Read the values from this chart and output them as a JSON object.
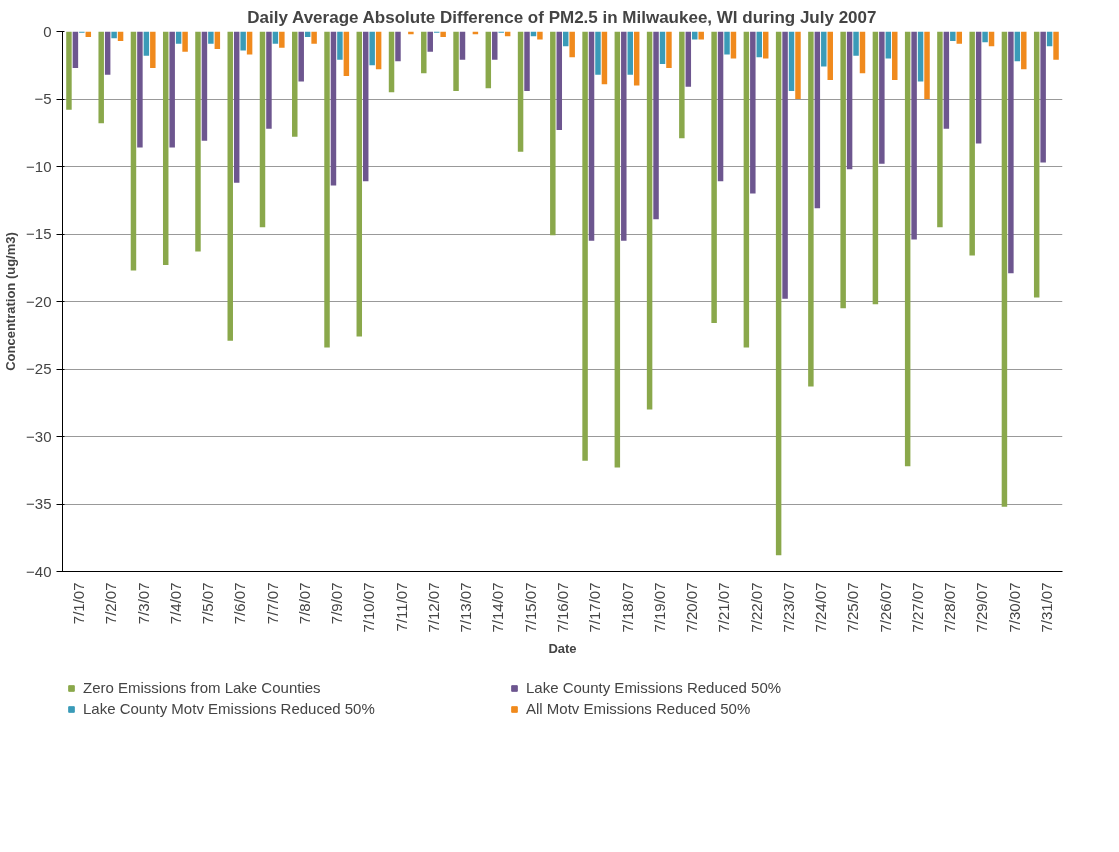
{
  "chart_data": {
    "type": "bar",
    "title": "Daily Average Absolute Difference of PM2.5 in Milwaukee, WI during July 2007",
    "xlabel": "Date",
    "ylabel": "Concentration (ug/m3)",
    "categories": [
      "7/1/07",
      "7/2/07",
      "7/3/07",
      "7/4/07",
      "7/5/07",
      "7/6/07",
      "7/7/07",
      "7/8/07",
      "7/9/07",
      "7/10/07",
      "7/11/07",
      "7/12/07",
      "7/13/07",
      "7/14/07",
      "7/15/07",
      "7/16/07",
      "7/17/07",
      "7/18/07",
      "7/19/07",
      "7/20/07",
      "7/21/07",
      "7/22/07",
      "7/23/07",
      "7/24/07",
      "7/25/07",
      "7/26/07",
      "7/27/07",
      "7/28/07",
      "7/29/07",
      "7/30/07",
      "7/31/07"
    ],
    "series": [
      {
        "name": "Zero Emissions from Lake Counties",
        "color": "#8aa84b",
        "values": [
          -5.8,
          -6.8,
          -17.7,
          -17.3,
          -16.3,
          -22.9,
          -14.5,
          -7.8,
          -23.4,
          -22.6,
          -4.5,
          -3.1,
          -4.4,
          -4.2,
          -8.9,
          -15.1,
          -31.8,
          -32.3,
          -28.0,
          -7.9,
          -21.6,
          -23.4,
          -38.8,
          -26.3,
          -20.5,
          -20.2,
          -32.2,
          -14.5,
          -16.6,
          -35.2,
          -19.7
        ]
      },
      {
        "name": "Lake County Emissions Reduced 50%",
        "color": "#6d568f",
        "values": [
          -2.7,
          -3.2,
          -8.6,
          -8.6,
          -8.1,
          -11.2,
          -7.2,
          -3.7,
          -11.4,
          -11.1,
          -2.2,
          -1.5,
          -2.1,
          -2.1,
          -4.4,
          -7.3,
          -15.5,
          -15.5,
          -13.9,
          -4.1,
          -11.1,
          -12.0,
          -19.8,
          -13.1,
          -10.2,
          -9.8,
          -15.4,
          -7.2,
          -8.3,
          -17.9,
          -9.7
        ]
      },
      {
        "name": "Lake County Motv Emissions Reduced 50%",
        "color": "#3a9bb8",
        "values": [
          -0.1,
          -0.5,
          -1.8,
          -0.9,
          -0.9,
          -1.4,
          -0.9,
          -0.4,
          -2.1,
          -2.5,
          null,
          -0.1,
          null,
          -0.1,
          -0.35,
          -1.1,
          -3.2,
          -3.2,
          -2.4,
          -0.6,
          -1.7,
          -1.9,
          -4.4,
          -2.6,
          -1.8,
          -2.0,
          -3.7,
          -0.7,
          -0.8,
          -2.2,
          -1.1
        ]
      },
      {
        "name": "All Motv Emissions Reduced 50%",
        "color": "#f08a1d",
        "values": [
          -0.4,
          -0.7,
          -2.7,
          -1.5,
          -1.3,
          -1.7,
          -1.2,
          -0.9,
          -3.3,
          -2.8,
          -0.2,
          -0.4,
          -0.2,
          -0.35,
          -0.6,
          -1.9,
          -3.9,
          -4.0,
          -2.7,
          -0.6,
          -2.0,
          -2.0,
          -5.0,
          -3.6,
          -3.1,
          -3.6,
          -5.0,
          -0.9,
          -1.1,
          -2.8,
          -2.1
        ]
      }
    ],
    "ylim": [
      -40,
      0
    ],
    "yticks": [
      -40,
      -35,
      -30,
      -25,
      -20,
      -15,
      -10,
      -5,
      0
    ],
    "grid": "y",
    "legend": "bottom"
  }
}
